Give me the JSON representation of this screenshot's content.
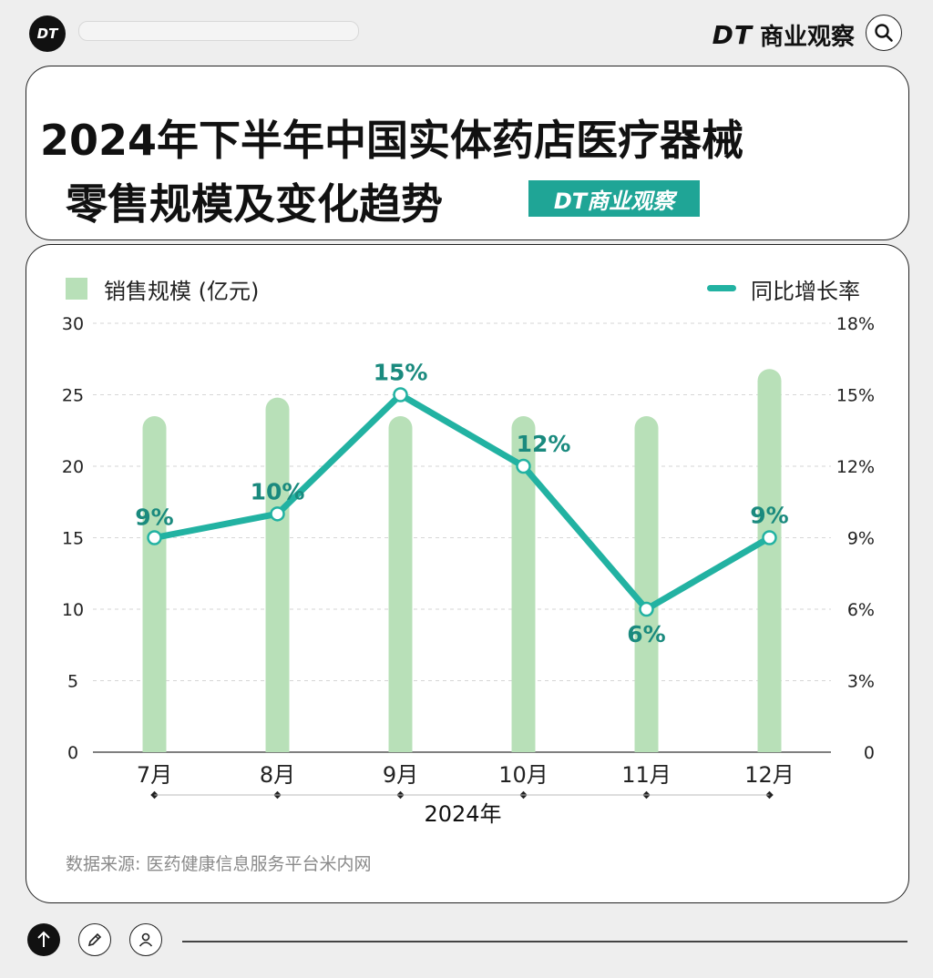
{
  "header": {
    "logo_text": "DT",
    "brand_latin": "DT",
    "brand_cn": "商业观察"
  },
  "title": {
    "line1": "2024年下半年中国实体药店医疗器械",
    "line2": "零售规模及变化趋势",
    "badge": "DT商业观察"
  },
  "legend": {
    "bar_label": "销售规模 (亿元)",
    "line_label": "同比增长率"
  },
  "source": "数据来源: 医药健康信息服务平台米内网",
  "colors": {
    "bar": "#b8e0b8",
    "line": "#22b2a2",
    "label": "#1a8a7e",
    "badge": "#1fa596"
  },
  "chart_data": {
    "type": "bar+line",
    "categories": [
      "7月",
      "8月",
      "9月",
      "10月",
      "11月",
      "12月"
    ],
    "xlabel": "2024年",
    "series": [
      {
        "name": "销售规模 (亿元)",
        "type": "bar",
        "axis": "left",
        "values": [
          23.5,
          24.8,
          23.5,
          23.5,
          23.5,
          26.8
        ]
      },
      {
        "name": "同比增长率",
        "type": "line",
        "axis": "right",
        "values": [
          9,
          10,
          15,
          12,
          6,
          9
        ],
        "labels": [
          "9%",
          "10%",
          "15%",
          "12%",
          "6%",
          "9%"
        ]
      }
    ],
    "y_left": {
      "min": 0,
      "max": 30,
      "ticks": [
        "0",
        "5",
        "10",
        "15",
        "20",
        "25",
        "30"
      ]
    },
    "y_right": {
      "min": 0,
      "max": 18,
      "ticks": [
        "0",
        "3%",
        "6%",
        "9%",
        "12%",
        "15%",
        "18%"
      ]
    },
    "grid": true,
    "legend_position": "top"
  },
  "icons": [
    "search-icon",
    "arrow-up-icon",
    "pencil-icon",
    "user-icon"
  ]
}
